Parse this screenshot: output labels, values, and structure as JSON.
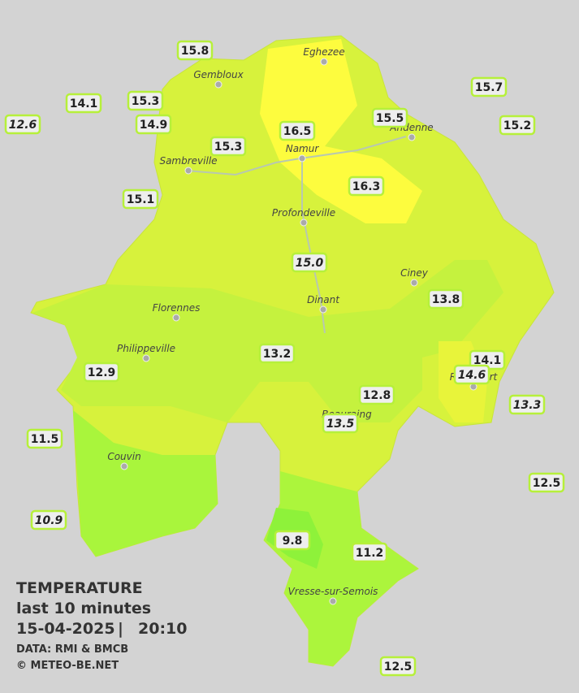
{
  "map": {
    "legend": {
      "title": "TEMPERATURE",
      "period": "last 10 minutes",
      "date": "15-04-2025",
      "separator": "|",
      "time": "20:10",
      "source": "DATA: RMI & BMCB",
      "copyright": "© METEO-BE.NET"
    },
    "cities": [
      "Eghezee",
      "Gembloux",
      "Andenne",
      "Namur",
      "Sambreville",
      "Profondeville",
      "Ciney",
      "Dinant",
      "Florennes",
      "Philippeville",
      "Rochefort",
      "Beauraing",
      "Couvin",
      "Vresse-sur-Semois"
    ],
    "stations": [
      {
        "label": "15.8",
        "italic": false
      },
      {
        "label": "14.1",
        "italic": false
      },
      {
        "label": "15.3",
        "italic": false
      },
      {
        "label": "12.6",
        "italic": true
      },
      {
        "label": "14.9",
        "italic": false
      },
      {
        "label": "16.5",
        "italic": false
      },
      {
        "label": "15.5",
        "italic": false
      },
      {
        "label": "15.7",
        "italic": false
      },
      {
        "label": "15.2",
        "italic": false
      },
      {
        "label": "15.3",
        "italic": false
      },
      {
        "label": "16.3",
        "italic": false
      },
      {
        "label": "15.1",
        "italic": false
      },
      {
        "label": "15.0",
        "italic": true
      },
      {
        "label": "13.8",
        "italic": false
      },
      {
        "label": "13.2",
        "italic": false
      },
      {
        "label": "14.1",
        "italic": false
      },
      {
        "label": "14.6",
        "italic": true
      },
      {
        "label": "12.9",
        "italic": false
      },
      {
        "label": "12.8",
        "italic": false
      },
      {
        "label": "13.5",
        "italic": true
      },
      {
        "label": "13.3",
        "italic": true
      },
      {
        "label": "11.5",
        "italic": false
      },
      {
        "label": "12.5",
        "italic": false
      },
      {
        "label": "10.9",
        "italic": true
      },
      {
        "label": "9.8",
        "italic": false
      },
      {
        "label": "11.2",
        "italic": false
      },
      {
        "label": "12.5",
        "italic": false
      }
    ]
  }
}
